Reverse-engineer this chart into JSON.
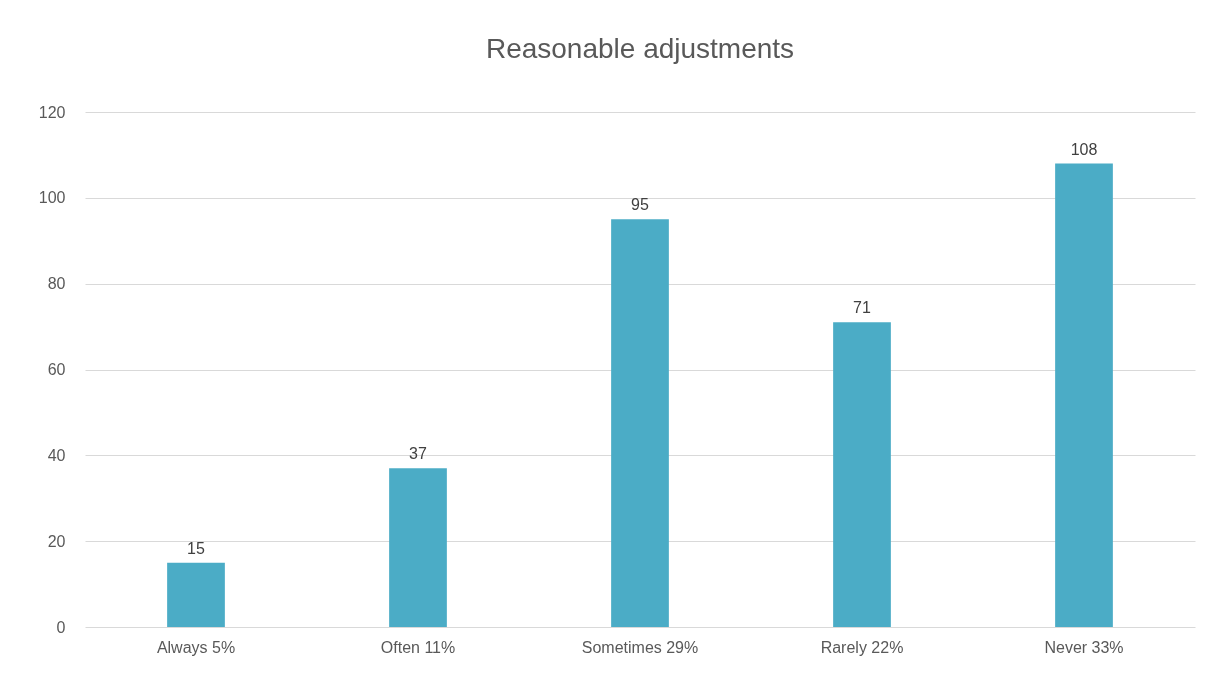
{
  "chart_data": {
    "type": "bar",
    "title": "Reasonable adjustments",
    "categories": [
      "Always 5%",
      "Often  11%",
      "Sometimes 29%",
      "Rarely 22%",
      "Never 33%"
    ],
    "values": [
      15,
      37,
      95,
      71,
      108
    ],
    "color": "#4bacc6",
    "ylim": [
      0,
      120
    ],
    "yticks": [
      0,
      20,
      40,
      60,
      80,
      100,
      120
    ],
    "grid": "y",
    "data_labels": true
  }
}
